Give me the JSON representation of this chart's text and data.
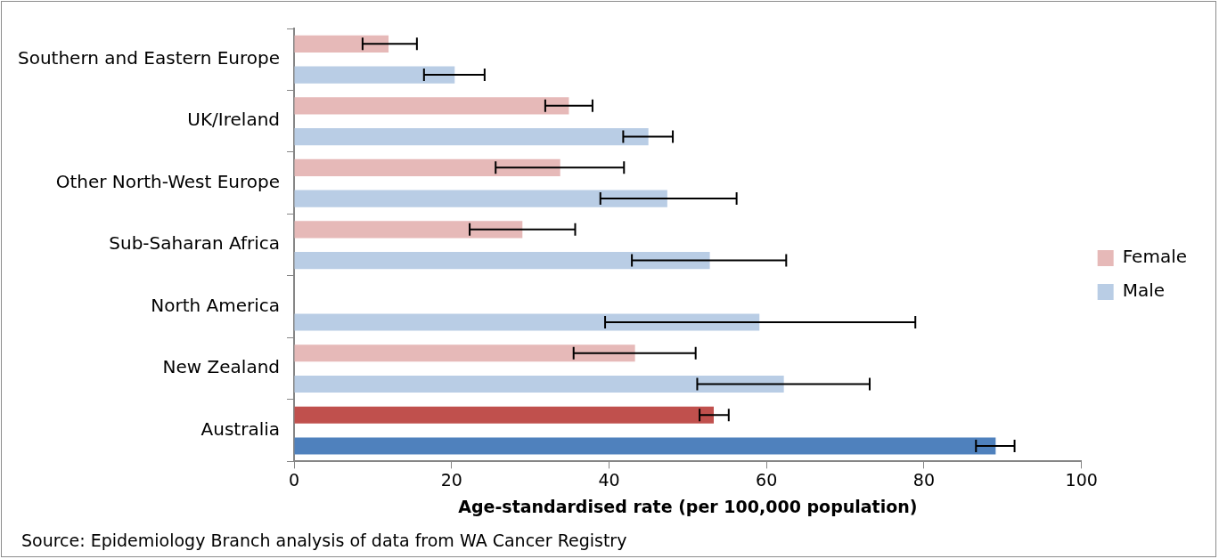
{
  "chart_data": {
    "type": "bar",
    "orientation": "horizontal",
    "xlabel": "Age-standardised rate (per 100,000 population)",
    "categories": [
      "Southern and Eastern Europe",
      "UK/Ireland",
      "Other North-West Europe",
      "Sub-Saharan Africa",
      "North America",
      "New Zealand",
      "Australia"
    ],
    "series": [
      {
        "name": "Female",
        "color": "#e6b9b8",
        "colors": [
          "#e6b9b8",
          "#e6b9b8",
          "#e6b9b8",
          "#e6b9b8",
          "#e6b9b8",
          "#e6b9b8",
          "#c0504d"
        ],
        "values": [
          12.0,
          34.9,
          33.8,
          29.0,
          null,
          43.3,
          53.3
        ],
        "errors": [
          [
            8.7,
            15.6
          ],
          [
            31.9,
            37.9
          ],
          [
            25.6,
            41.9
          ],
          [
            22.3,
            35.7
          ],
          null,
          [
            35.5,
            51.0
          ],
          [
            51.5,
            55.2
          ]
        ]
      },
      {
        "name": "Male",
        "color": "#b9cde5",
        "colors": [
          "#b9cde5",
          "#b9cde5",
          "#b9cde5",
          "#b9cde5",
          "#b9cde5",
          "#b9cde5",
          "#4f81bd"
        ],
        "values": [
          20.4,
          45.0,
          47.4,
          52.8,
          59.1,
          62.2,
          89.1
        ],
        "errors": [
          [
            16.5,
            24.2
          ],
          [
            41.8,
            48.1
          ],
          [
            38.9,
            56.2
          ],
          [
            42.9,
            62.5
          ],
          [
            39.5,
            78.9
          ],
          [
            51.2,
            73.1
          ],
          [
            86.6,
            91.5
          ]
        ]
      }
    ],
    "xlim": [
      0,
      100
    ],
    "xticks": [
      0,
      20,
      40,
      60,
      80,
      100
    ],
    "grid": false,
    "legend": "right",
    "annotations": [
      "Source: Epidemiology Branch analysis of data from WA Cancer Registry"
    ]
  }
}
